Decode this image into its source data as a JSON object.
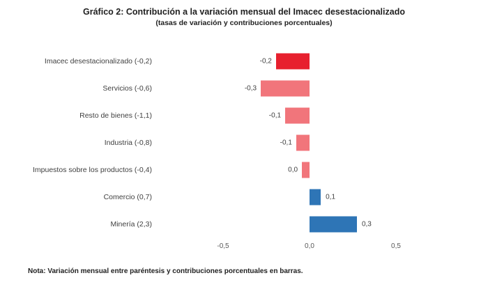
{
  "chart_data": {
    "type": "bar",
    "orientation": "horizontal",
    "title": "Gráfico 2: Contribución a la variación mensual del Imacec desestacionalizado",
    "subtitle": "(tasas de variación y contribuciones porcentuales)",
    "categories": [
      "Imacec desestacionalizado (-0,2)",
      "Servicios (-0,6)",
      "Resto de bienes (-1,1)",
      "Industria (-0,8)",
      "Impuestos sobre los productos (-0,4)",
      "Comercio (0,7)",
      "Minería (2,3)"
    ],
    "bars": [
      {
        "category": "Imacec desestacionalizado (-0,2)",
        "value_label": "-0,2",
        "value": -0.194,
        "color": "#E7202E"
      },
      {
        "category": "Servicios (-0,6)",
        "value_label": "-0,3",
        "value": -0.282,
        "color": "#F1757B"
      },
      {
        "category": "Resto de bienes (-1,1)",
        "value_label": "-0,1",
        "value": -0.141,
        "color": "#F1757B"
      },
      {
        "category": "Industria (-0,8)",
        "value_label": "-0,1",
        "value": -0.077,
        "color": "#F1757B"
      },
      {
        "category": "Impuestos sobre los productos (-0,4)",
        "value_label": "0,0",
        "value": -0.044,
        "color": "#F1757B"
      },
      {
        "category": "Comercio (0,7)",
        "value_label": "0,1",
        "value": 0.065,
        "color": "#2E75B6"
      },
      {
        "category": "Minería (2,3)",
        "value_label": "0,3",
        "value": 0.274,
        "color": "#2E75B6"
      }
    ],
    "xlabel": "",
    "ylabel": "",
    "x_axis": {
      "ticks": [
        {
          "label": "-0,5",
          "value": -0.5
        },
        {
          "label": "0,0",
          "value": 0.0
        },
        {
          "label": "0,5",
          "value": 0.5
        }
      ],
      "range": [
        -0.91,
        1.02
      ]
    },
    "grid": false,
    "legend": false,
    "colors": {
      "total_negative": "#E7202E",
      "component_negative": "#F1757B",
      "component_positive": "#2E75B6"
    }
  },
  "note": "Nota: Variación mensual entre paréntesis y contribuciones porcentuales en barras."
}
